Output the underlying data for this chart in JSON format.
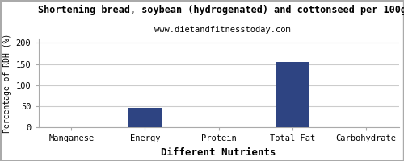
{
  "title": "Shortening bread, soybean (hydrogenated) and cottonseed per 100g",
  "subtitle": "www.dietandfitnesstoday.com",
  "xlabel": "Different Nutrients",
  "ylabel": "Percentage of RDH (%)",
  "categories": [
    "Manganese",
    "Energy",
    "Protein",
    "Total Fat",
    "Carbohydrate"
  ],
  "values": [
    0.5,
    46,
    0.3,
    155,
    0.2
  ],
  "bar_color": "#2e4482",
  "ylim": [
    0,
    210
  ],
  "yticks": [
    0,
    50,
    100,
    150,
    200
  ],
  "background_color": "#ffffff",
  "plot_bg_color": "#ffffff",
  "grid_color": "#cccccc",
  "border_color": "#aaaaaa",
  "title_fontsize": 8.5,
  "subtitle_fontsize": 7.5,
  "xlabel_fontsize": 9,
  "ylabel_fontsize": 7,
  "tick_fontsize": 7.5
}
